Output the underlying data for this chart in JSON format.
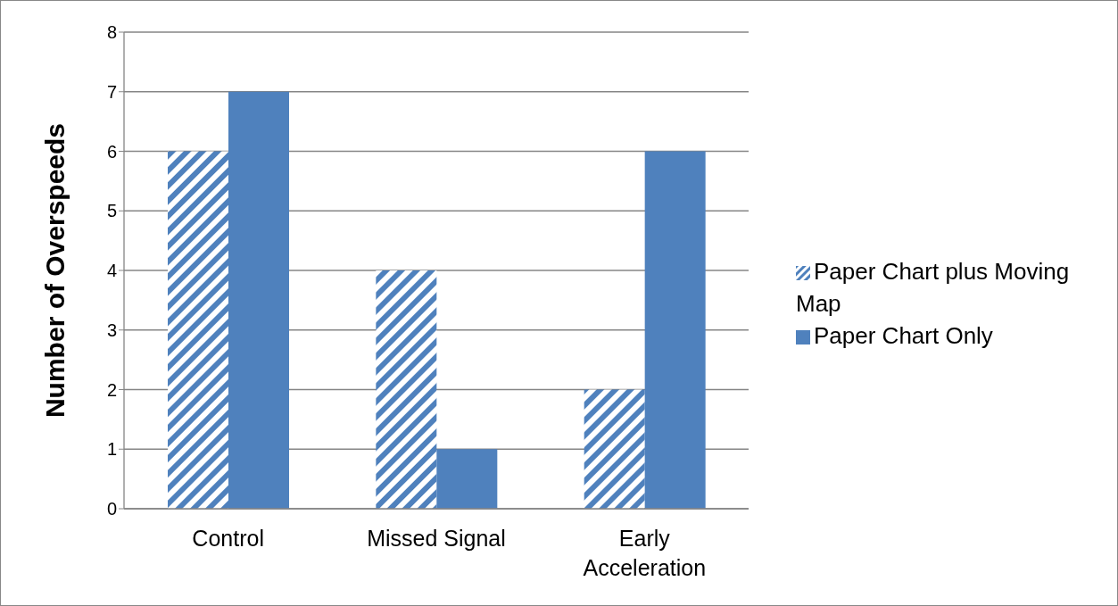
{
  "chart_data": {
    "type": "bar",
    "ylabel": "Number of Overspeeds",
    "categories": [
      "Control",
      "Missed Signal",
      "Early Acceleration"
    ],
    "series": [
      {
        "name": "Paper Chart plus Moving Map",
        "color": "#4f81bd",
        "values": [
          6,
          4,
          2
        ]
      },
      {
        "name": "Paper Chart Only",
        "color": "#4f81bd",
        "values": [
          7,
          1,
          6
        ]
      }
    ],
    "ylim": [
      0,
      8
    ],
    "yticks": [
      0,
      1,
      2,
      3,
      4,
      5,
      6,
      7,
      8
    ],
    "grid": "y",
    "legend": "right"
  }
}
